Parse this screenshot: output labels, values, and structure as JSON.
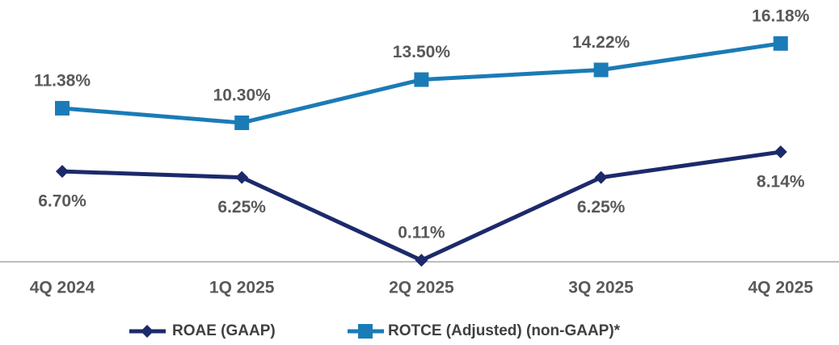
{
  "chart_data": {
    "type": "line",
    "categories": [
      "4Q 2024",
      "1Q 2025",
      "2Q 2025",
      "3Q 2025",
      "4Q 2025"
    ],
    "series": [
      {
        "name": "ROAE (GAAP)",
        "color": "#1c2a6b",
        "marker": "diamond",
        "values": [
          6.7,
          6.25,
          0.11,
          6.25,
          8.14
        ],
        "value_labels": [
          "6.70%",
          "6.25%",
          "0.11%",
          "6.25%",
          "8.14%"
        ]
      },
      {
        "name": "ROTCE (Adjusted) (non-GAAP)*",
        "color": "#1b7bb6",
        "marker": "square",
        "values": [
          11.38,
          10.3,
          13.5,
          14.22,
          16.18
        ],
        "value_labels": [
          "11.38%",
          "10.30%",
          "13.50%",
          "14.22%",
          "16.18%"
        ]
      }
    ]
  }
}
